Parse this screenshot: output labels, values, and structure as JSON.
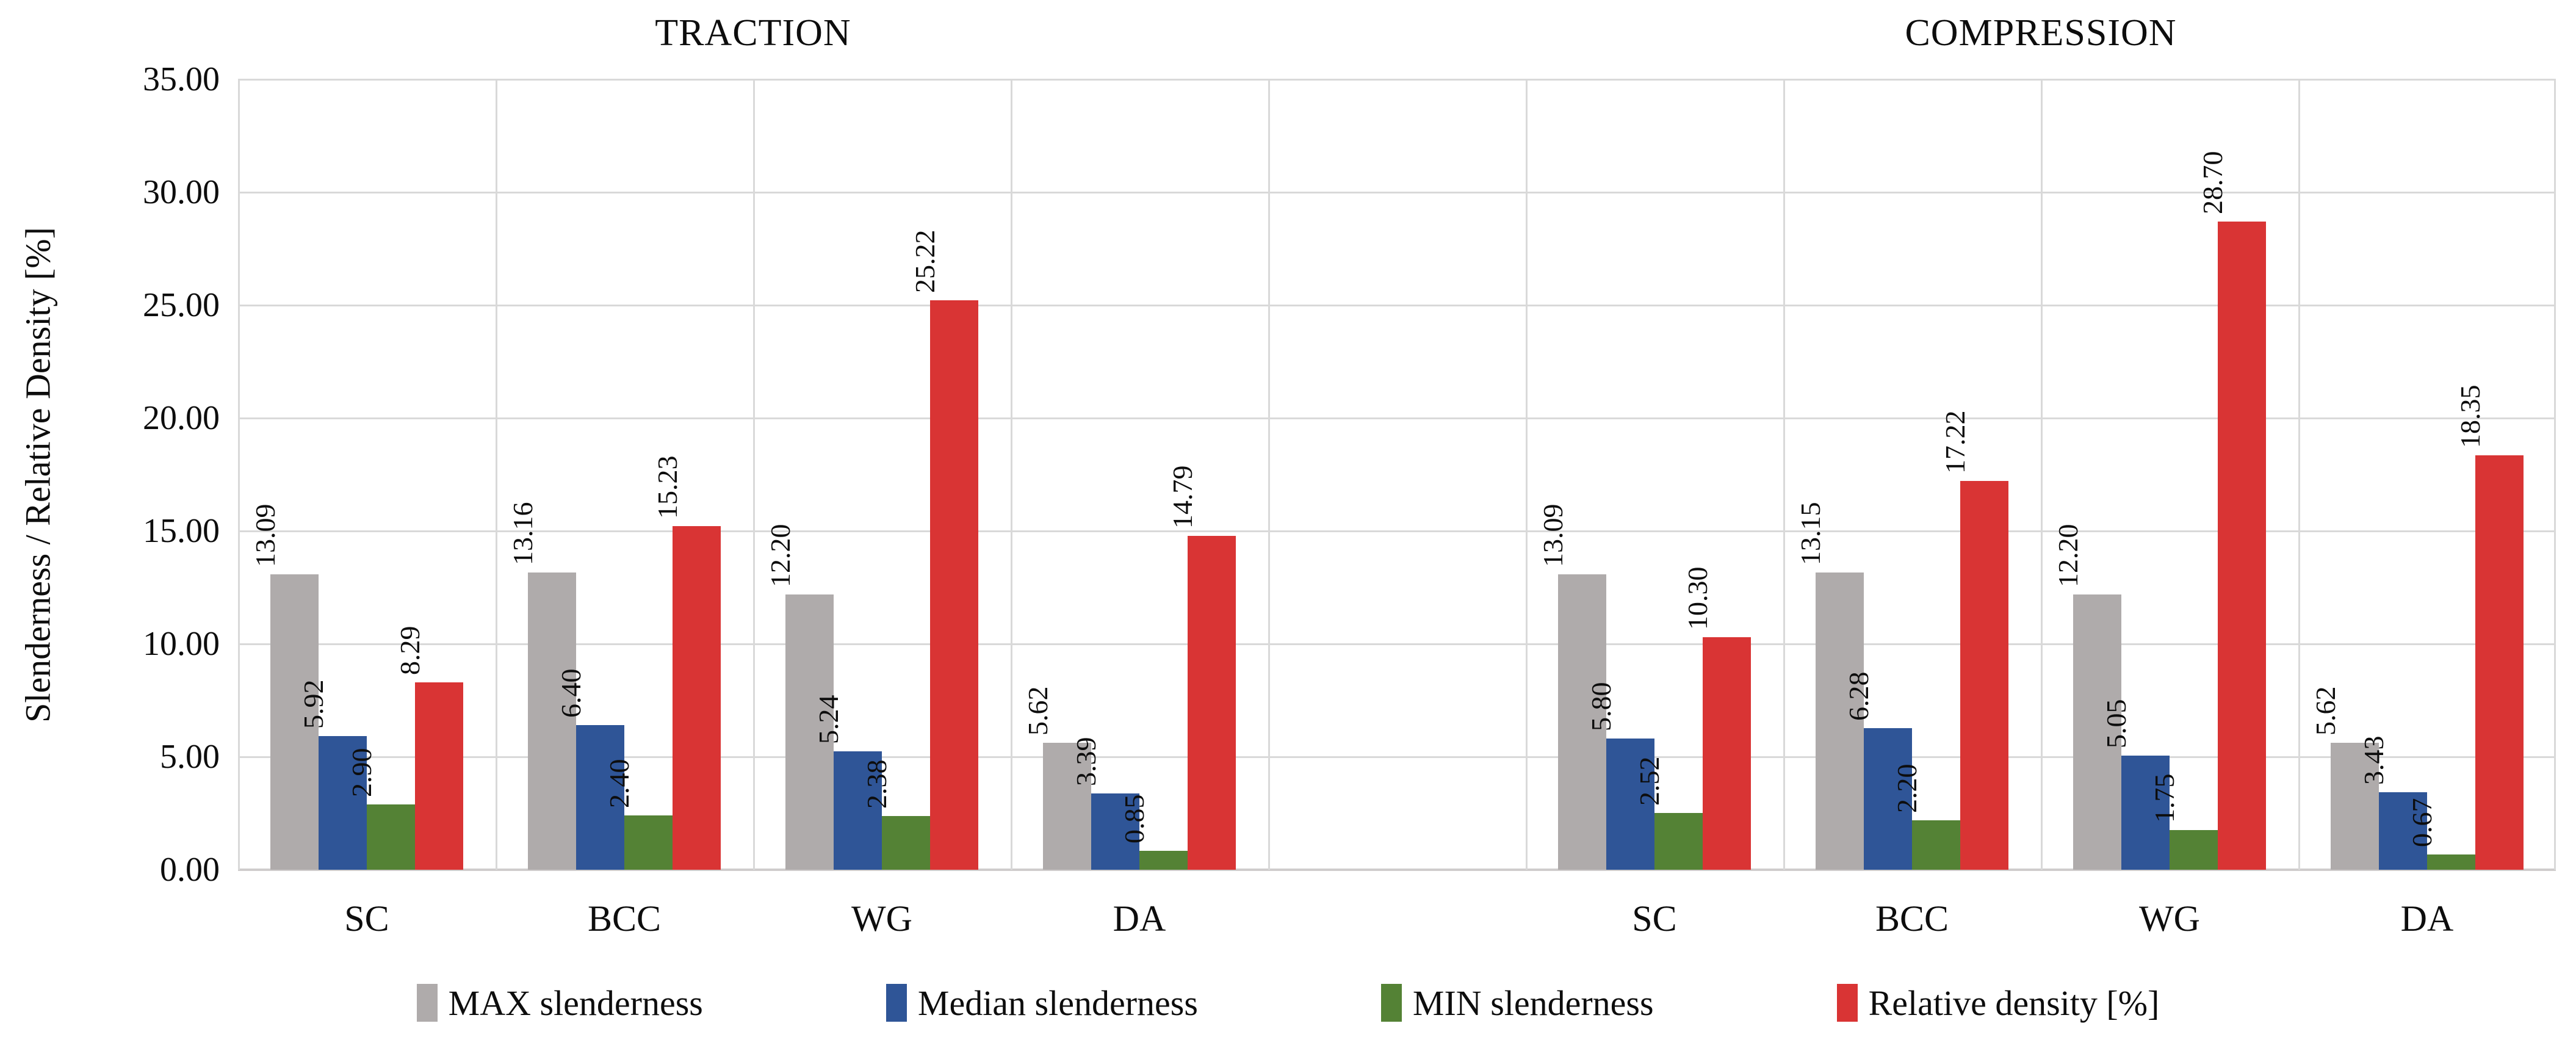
{
  "chart_data": {
    "type": "bar",
    "ylabel": "Slenderness / Relative Density [%]",
    "ylim": [
      0,
      35
    ],
    "ytick_step": 5,
    "ytick_labels": [
      "0.00",
      "5.00",
      "10.00",
      "15.00",
      "20.00",
      "25.00",
      "30.00",
      "35.00"
    ],
    "grid": true,
    "legend_position": "bottom",
    "panels": [
      {
        "title": "TRACTION",
        "categories": [
          "SC",
          "BCC",
          "WG",
          "DA"
        ],
        "series": [
          {
            "name": "MAX slenderness",
            "values": [
              13.09,
              13.16,
              12.2,
              5.62
            ]
          },
          {
            "name": "Median slenderness",
            "values": [
              5.92,
              6.4,
              5.24,
              3.39
            ]
          },
          {
            "name": "MIN slenderness",
            "values": [
              2.9,
              2.4,
              2.38,
              0.85
            ]
          },
          {
            "name": "Relative density [%]",
            "values": [
              8.29,
              15.23,
              25.22,
              14.79
            ]
          }
        ]
      },
      {
        "title": "COMPRESSION",
        "categories": [
          "SC",
          "BCC",
          "WG",
          "DA"
        ],
        "series": [
          {
            "name": "MAX slenderness",
            "values": [
              13.09,
              13.15,
              12.2,
              5.62
            ]
          },
          {
            "name": "Median slenderness",
            "values": [
              5.8,
              6.28,
              5.05,
              3.43
            ]
          },
          {
            "name": "MIN slenderness",
            "values": [
              2.52,
              2.2,
              1.75,
              0.67
            ]
          },
          {
            "name": "Relative density [%]",
            "values": [
              10.3,
              17.22,
              28.7,
              18.35
            ]
          }
        ]
      }
    ],
    "legend": [
      {
        "label": "MAX slenderness",
        "color": "#afabab"
      },
      {
        "label": "Median slenderness",
        "color": "#2f5597"
      },
      {
        "label": "MIN slenderness",
        "color": "#548235"
      },
      {
        "label": "Relative density [%]",
        "color": "#d93434"
      }
    ],
    "colors": {
      "gridline": "#d9d9d9",
      "axis": "#cfcccc",
      "text": "#0d0d0d"
    }
  }
}
